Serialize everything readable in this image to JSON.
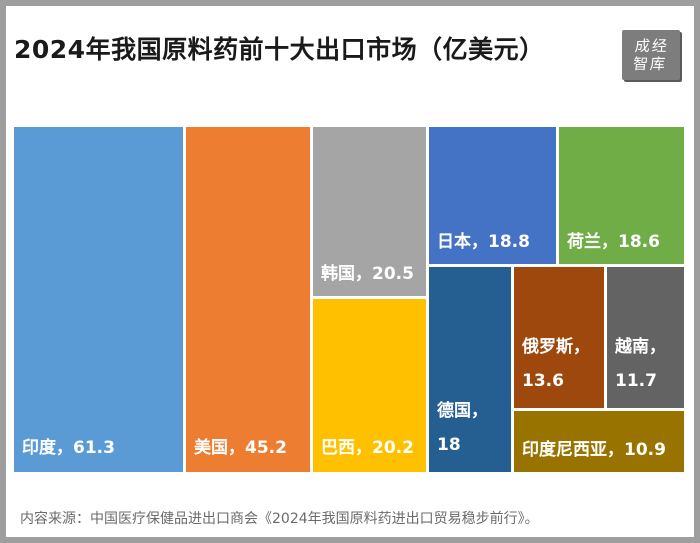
{
  "title": "2024年我国原料药前十大出口市场（亿美元）",
  "logo": {
    "text": "成经智库"
  },
  "source": "内容来源：中国医疗保健品进出口商会《2024年我国原料药进出口贸易稳步前行》。",
  "chart_data": {
    "type": "treemap",
    "items": [
      {
        "name": "印度",
        "value": 61.3,
        "label": "印度，61.3",
        "color": "#5b9bd5"
      },
      {
        "name": "美国",
        "value": 45.2,
        "label": "美国，45.2",
        "color": "#ed7d31"
      },
      {
        "name": "韩国",
        "value": 20.5,
        "label": "韩国，20.5",
        "color": "#a5a5a5"
      },
      {
        "name": "巴西",
        "value": 20.2,
        "label": "巴西，20.2",
        "color": "#ffc000"
      },
      {
        "name": "日本",
        "value": 18.8,
        "label": "日本，18.8",
        "color": "#4472c4"
      },
      {
        "name": "荷兰",
        "value": 18.6,
        "label": "荷兰，18.6",
        "color": "#70ad47"
      },
      {
        "name": "德国",
        "value": 18,
        "label": "德国，\n18",
        "color": "#255e91"
      },
      {
        "name": "俄罗斯",
        "value": 13.6,
        "label": "俄罗斯，\n13.6",
        "color": "#9e480e"
      },
      {
        "name": "越南",
        "value": 11.7,
        "label": "越南，\n11.7",
        "color": "#636363"
      },
      {
        "name": "印度尼西亚",
        "value": 10.9,
        "label": "印度尼西亚，10.9",
        "color": "#997300"
      }
    ]
  }
}
